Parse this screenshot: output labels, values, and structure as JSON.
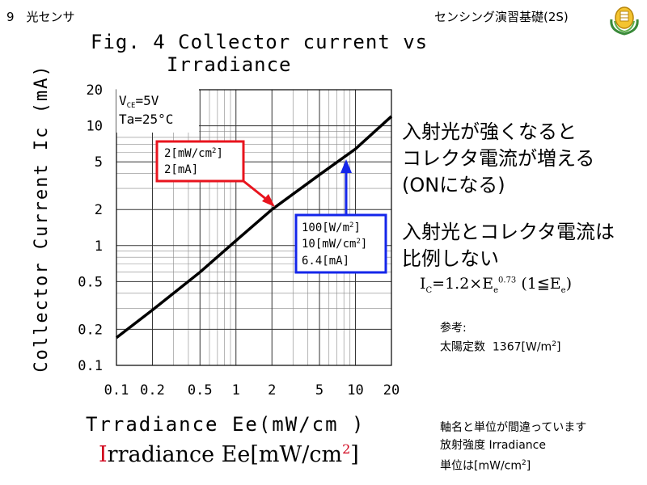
{
  "header": {
    "left": "9　光センサ",
    "right": "センシング演習基礎(2S)"
  },
  "figure": {
    "title_line1": "Fig. 4 Collector current vs",
    "title_line2": "Irradiance"
  },
  "chart_data": {
    "type": "line",
    "xscale": "log",
    "yscale": "log",
    "xlim": [
      0.1,
      20
    ],
    "ylim": [
      0.1,
      20
    ],
    "x_ticks": [
      "0.1",
      "0.2",
      "0.5",
      "1",
      "2",
      "5",
      "10",
      "20"
    ],
    "y_ticks": [
      "0.1",
      "0.2",
      "0.5",
      "1",
      "2",
      "5",
      "10",
      "20"
    ],
    "ylabel": "Collector Current Ic (mA)",
    "xlabel": "Trradiance Ee(mW/cm )",
    "conditions": [
      "V_CE=5V",
      "Ta=25°C"
    ],
    "grid": true,
    "series": [
      {
        "x": [
          0.1,
          0.2,
          0.5,
          1,
          2,
          5,
          10,
          20
        ],
        "y": [
          0.17,
          0.29,
          0.6,
          1.1,
          2,
          3.9,
          6.4,
          12
        ]
      }
    ],
    "annotations": [
      {
        "lines": [
          "2[mW/cm2]",
          "2[mA]"
        ],
        "color": "#e8141e"
      },
      {
        "lines": [
          "100[W/m2]",
          "10[mW/cm2]",
          "6.4[mA]"
        ],
        "color": "#1426ea"
      }
    ]
  },
  "notes": {
    "line1": "入射光が強くなると",
    "line2": "コレクタ電流が増える",
    "line3": "(ONになる)",
    "line4": "入射光とコレクタ電流は",
    "line5": "比例しない",
    "ref_title": "参考:",
    "ref_body": "太陽定数 1367[W/m2]",
    "corr_line1": "軸名と単位が間違っています",
    "corr_line2": "放射強度 Irradiance",
    "corr_line3": "単位は[mW/cm2]"
  },
  "formula": {
    "I": "I",
    "c": "C",
    "mid": "=1.2×E",
    "e1": "e",
    "exp": "0.73",
    "tail": " (1≦E",
    "e2": "e",
    "close": ")"
  },
  "corrected_label": {
    "first": "I",
    "rest": "rradiance Ee[mW/cm",
    "sup": "2",
    "close": "]"
  },
  "colors": {
    "red": "#e8141e",
    "blue": "#1426ea",
    "emphasis": "#d0021b"
  }
}
